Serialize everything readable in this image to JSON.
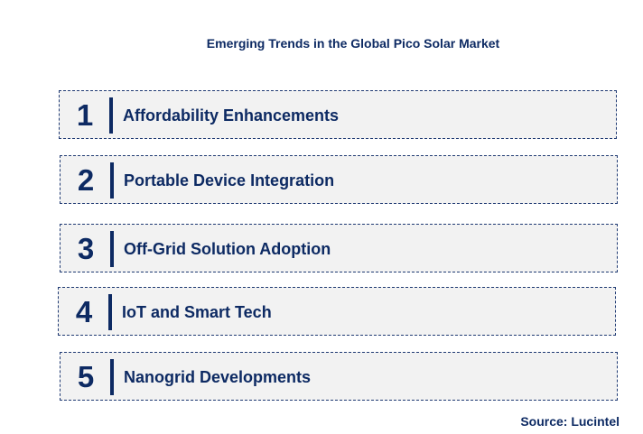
{
  "title": "Emerging Trends in the Global Pico Solar Market",
  "items": [
    {
      "number": "1",
      "label": "Affordability Enhancements"
    },
    {
      "number": "2",
      "label": "Portable Device Integration"
    },
    {
      "number": "3",
      "label": "Off-Grid Solution Adoption"
    },
    {
      "number": "4",
      "label": "IoT and Smart Tech"
    },
    {
      "number": "5",
      "label": "Nanogrid Developments"
    }
  ],
  "source": "Source: Lucintel",
  "colors": {
    "text": "#0d2a63",
    "box": "#f2f2f2"
  }
}
